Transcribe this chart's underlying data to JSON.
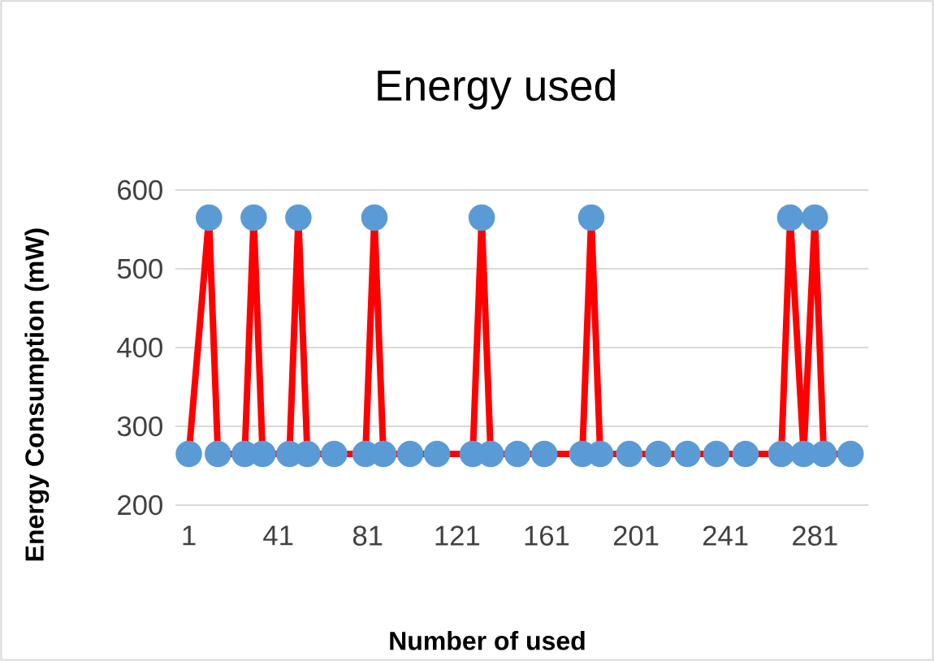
{
  "chart_data": {
    "type": "line",
    "title": "Energy used",
    "xlabel": "Number of used",
    "ylabel": "Energy Consumption (mW)",
    "xlim": [
      -5,
      305
    ],
    "xticks": [
      1,
      41,
      81,
      121,
      161,
      201,
      241,
      281
    ],
    "ylim": [
      200,
      600
    ],
    "yticks": [
      200,
      300,
      400,
      500,
      600
    ],
    "grid": "y",
    "marker": "circle",
    "x": [
      1,
      10,
      14,
      26,
      30,
      34,
      46,
      50,
      54,
      66,
      80,
      84,
      88,
      100,
      112,
      128,
      132,
      136,
      148,
      160,
      177,
      181,
      185,
      198,
      211,
      224,
      237,
      250,
      266,
      270,
      276,
      281,
      285,
      297
    ],
    "series": [
      {
        "color": "#ff0000",
        "values": [
          265,
          565,
          265,
          265,
          565,
          265,
          265,
          565,
          265,
          265,
          265,
          565,
          265,
          265,
          265,
          265,
          565,
          265,
          265,
          265,
          265,
          565,
          265,
          265,
          265,
          265,
          265,
          265,
          265,
          565,
          265,
          565,
          265,
          265
        ],
        "colors": [
          "#5b9bd5",
          "#5b9bd5",
          "#5b9bd5",
          "#5b9bd5",
          "#5b9bd5",
          "#5b9bd5",
          "#5b9bd5",
          "#5b9bd5",
          "#5b9bd5",
          "#5b9bd5",
          "#5b9bd5",
          "#5b9bd5",
          "#5b9bd5",
          "#5b9bd5",
          "#5b9bd5",
          "#5b9bd5",
          "#5b9bd5",
          "#5b9bd5",
          "#5b9bd5",
          "#5b9bd5",
          "#5b9bd5",
          "#5b9bd5",
          "#5b9bd5",
          "#5b9bd5",
          "#5b9bd5",
          "#5b9bd5",
          "#5b9bd5",
          "#5b9bd5",
          "#5b9bd5",
          "#5b9bd5",
          "#5b9bd5",
          "#5b9bd5",
          "#5b9bd5",
          "#5b9bd5"
        ]
      }
    ]
  }
}
